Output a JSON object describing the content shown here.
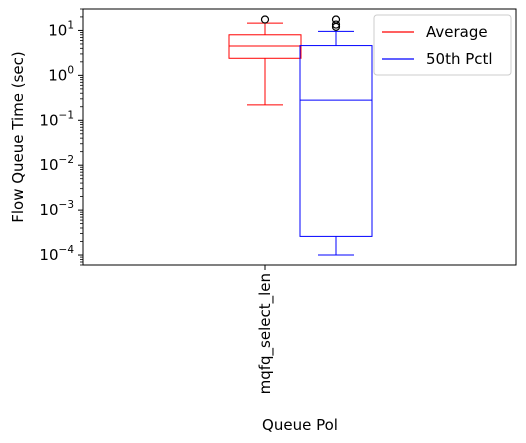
{
  "chart_data": {
    "type": "box",
    "ylabel": "Flow Queue Time (sec)",
    "xlabel": "Queue Pol",
    "yscale": "log",
    "ylim": [
      6e-05,
      30
    ],
    "categories": [
      "mqfq_select_len"
    ],
    "y_ticks": [
      {
        "value": 0.0001,
        "base": "10",
        "exp": "−4"
      },
      {
        "value": 0.001,
        "base": "10",
        "exp": "−3"
      },
      {
        "value": 0.01,
        "base": "10",
        "exp": "−2"
      },
      {
        "value": 0.1,
        "base": "10",
        "exp": "−1"
      },
      {
        "value": 1,
        "base": "10",
        "exp": "0"
      },
      {
        "value": 10,
        "base": "10",
        "exp": "1"
      }
    ],
    "series": [
      {
        "name": "Average",
        "color": "#ff0000",
        "whisker_low": 0.22,
        "q1": 2.4,
        "median": 4.5,
        "q3": 8.0,
        "whisker_high": 14.5,
        "outliers": [
          17.5
        ]
      },
      {
        "name": "50th Pctl",
        "color": "#0000ff",
        "whisker_low": 0.0001,
        "q1": 0.00026,
        "median": 0.28,
        "q3": 4.6,
        "whisker_high": 9.5,
        "outliers": [
          12.0,
          13.5,
          17.5
        ]
      }
    ],
    "legend_position": "top-right",
    "grid": false
  }
}
